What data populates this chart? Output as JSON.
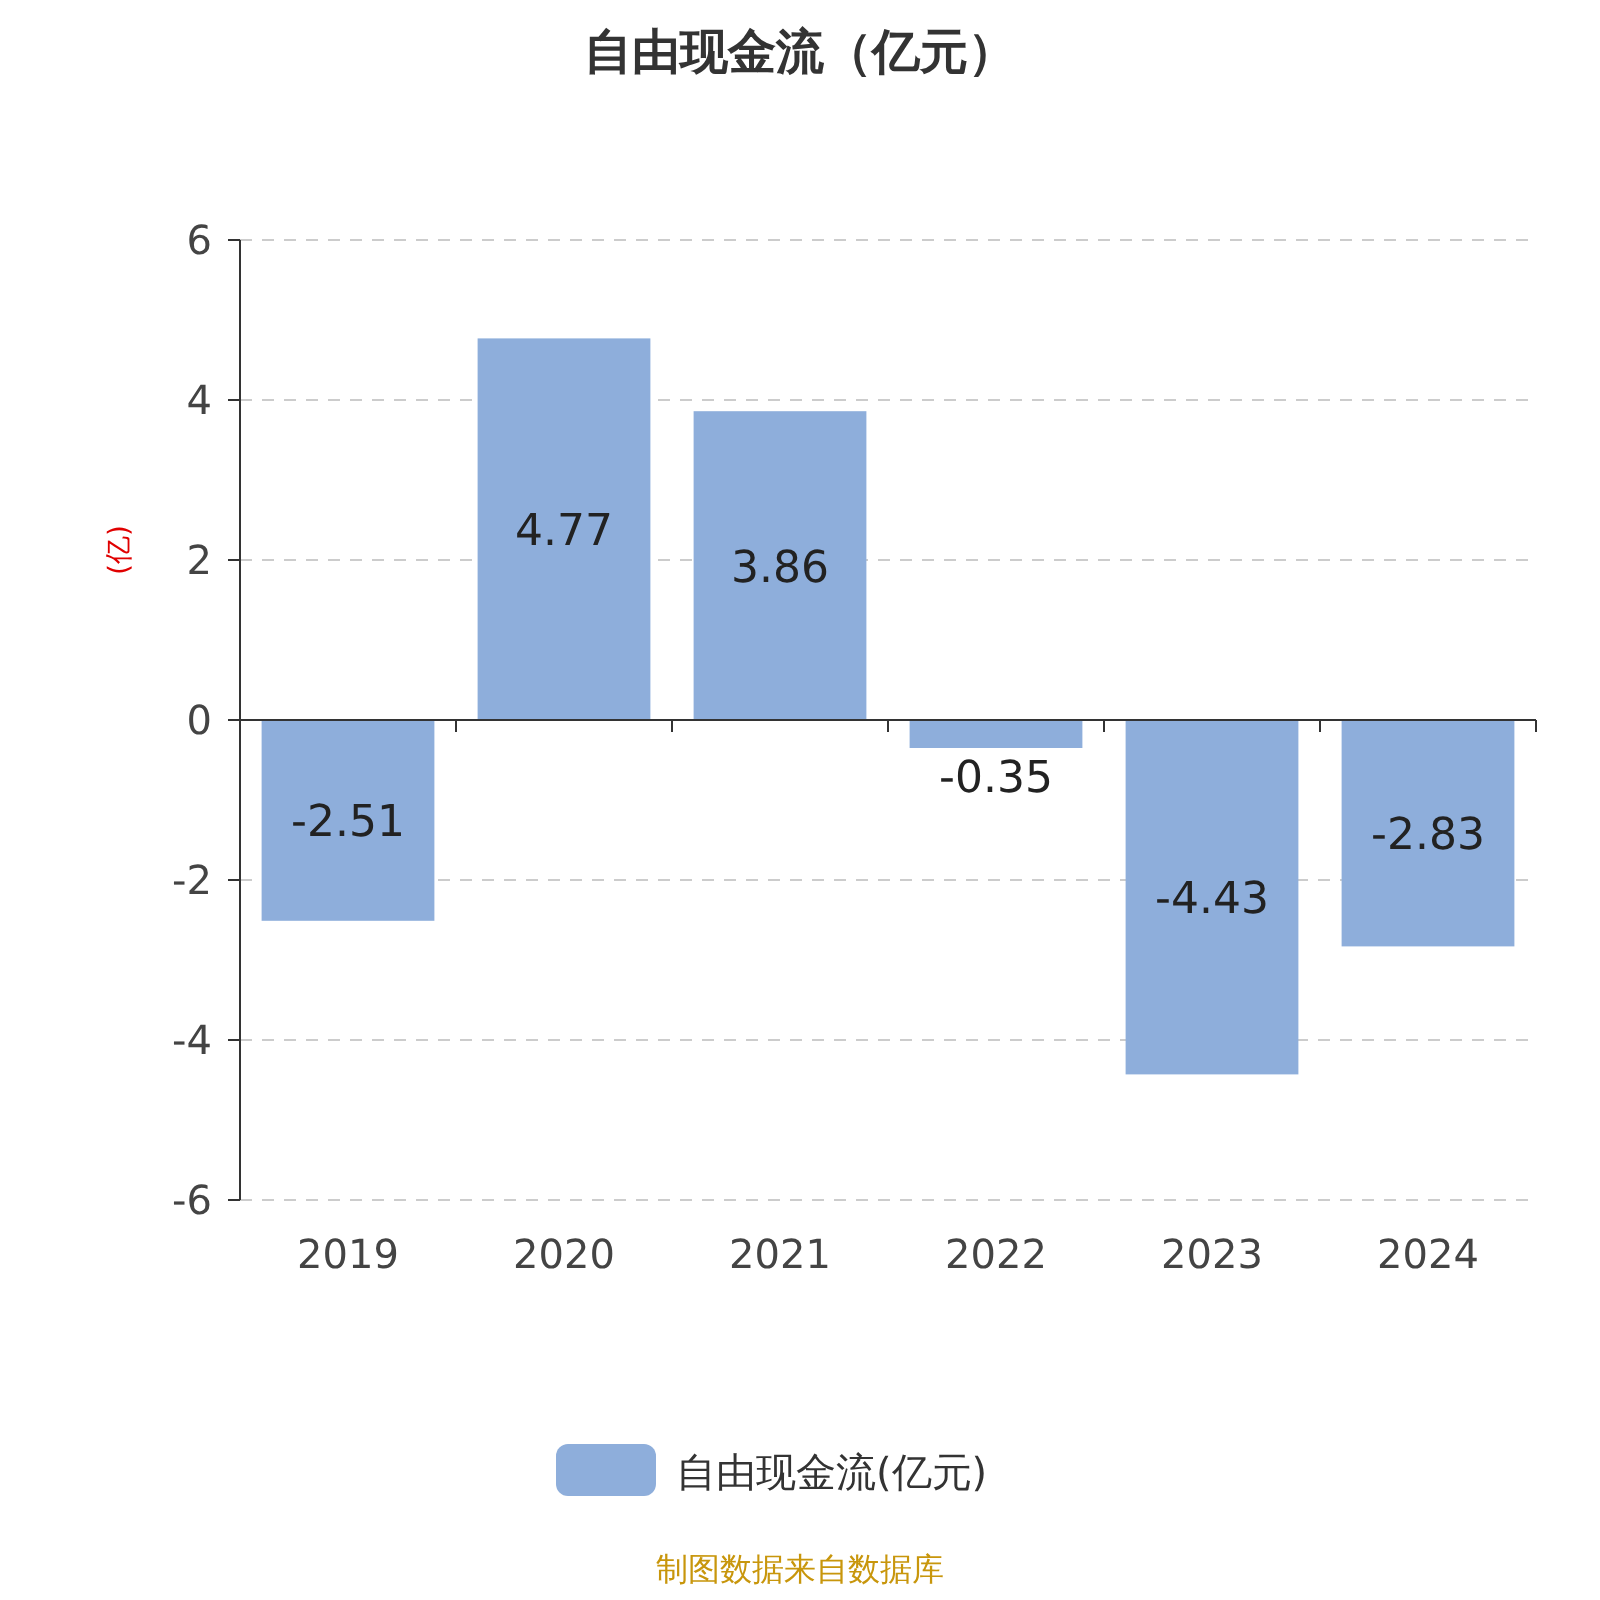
{
  "chart_data": {
    "type": "bar",
    "title": "自由现金流（亿元）",
    "ylabel": "(亿)",
    "categories": [
      "2019",
      "2020",
      "2021",
      "2022",
      "2023",
      "2024"
    ],
    "series": [
      {
        "name": "自由现金流(亿元)",
        "color": "#8eaedb",
        "values": [
          -2.51,
          4.77,
          3.86,
          -0.35,
          -4.43,
          -2.83
        ]
      }
    ],
    "ylim": [
      -6,
      6
    ],
    "yticks": [
      -6,
      -4,
      -2,
      0,
      2,
      4,
      6
    ],
    "grid": "y",
    "legend": "bottom",
    "data_labels": true,
    "annotations": [
      "制图数据来自数据库"
    ]
  }
}
